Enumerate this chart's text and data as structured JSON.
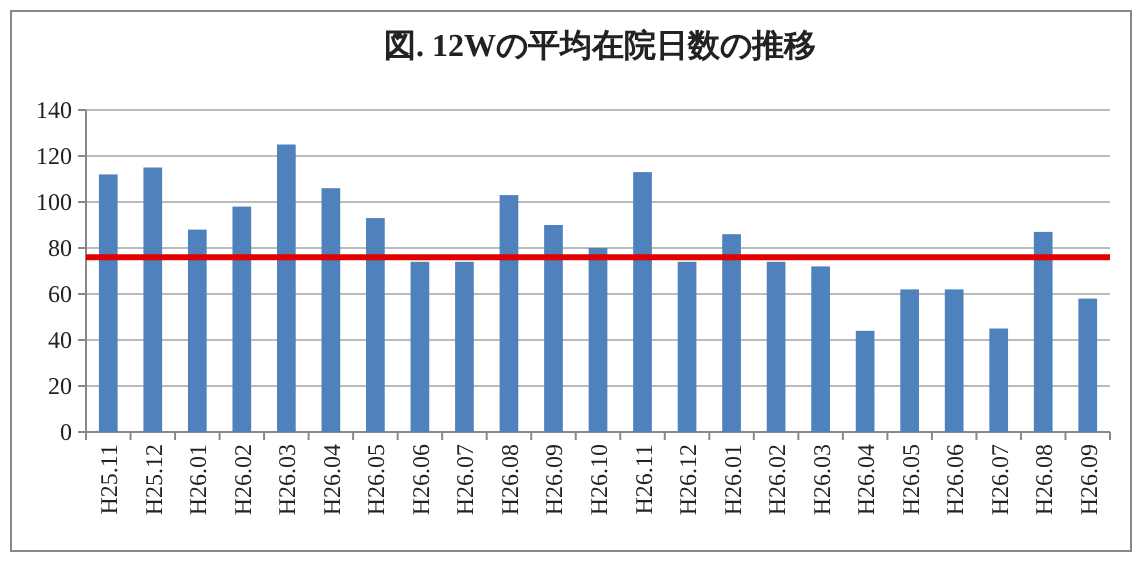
{
  "chart_data": {
    "type": "bar",
    "title": "図. 12Wの平均在院日数の推移",
    "categories": [
      "H25.11",
      "H25.12",
      "H26.01",
      "H26.02",
      "H26.03",
      "H26.04",
      "H26.05",
      "H26.06",
      "H26.07",
      "H26.08",
      "H26.09",
      "H26.10",
      "H26.11",
      "H26.12",
      "H26.01",
      "H26.02",
      "H26.03",
      "H26.04",
      "H26.05",
      "H26.06",
      "H26.07",
      "H26.08",
      "H26.09"
    ],
    "values": [
      112,
      115,
      88,
      98,
      125,
      106,
      93,
      74,
      74,
      103,
      90,
      80,
      113,
      74,
      86,
      74,
      72,
      44,
      62,
      62,
      45,
      87,
      58
    ],
    "color": "#4f81bd",
    "ylim": [
      0,
      140
    ],
    "yticks": [
      0,
      20,
      40,
      60,
      80,
      100,
      120,
      140
    ],
    "grid": "y",
    "ref_lines": [
      {
        "axis": "y",
        "value": 76,
        "color": "#e00000"
      }
    ]
  }
}
